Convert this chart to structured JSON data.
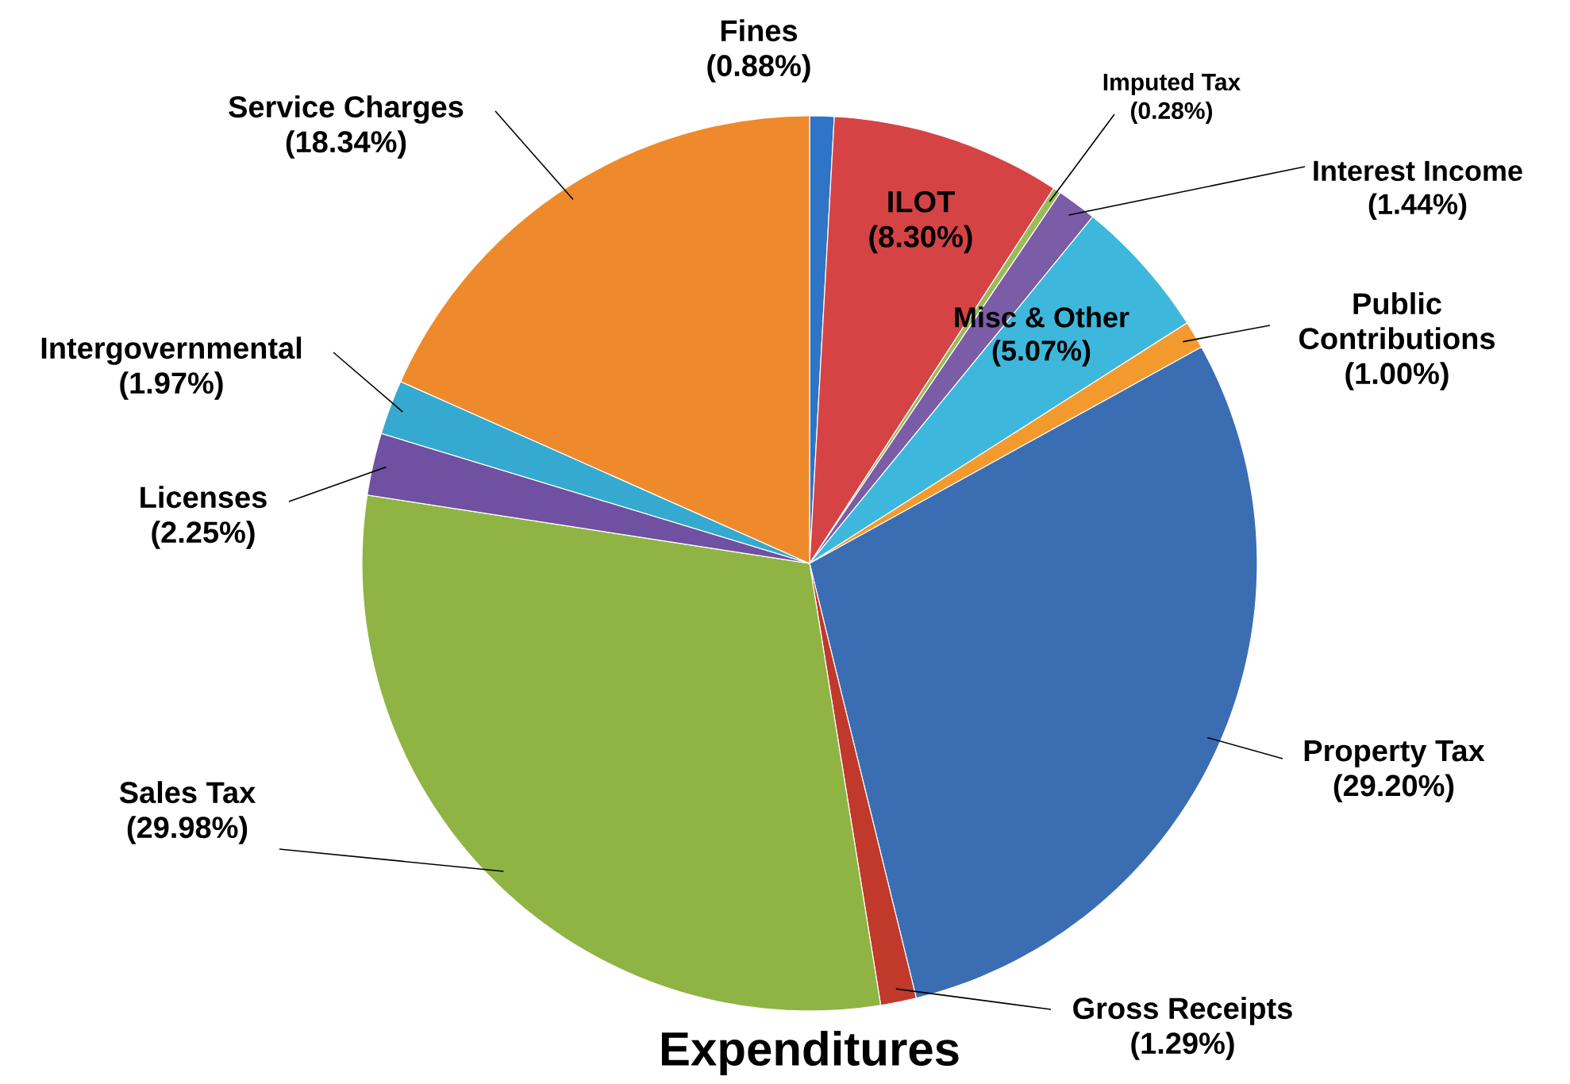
{
  "chart_data": {
    "type": "pie",
    "title": "Expenditures",
    "categories": [
      "Fines",
      "ILOT",
      "Imputed Tax",
      "Interest Income",
      "Misc & Other",
      "Public Contributions",
      "Property Tax",
      "Gross Receipts",
      "Sales Tax",
      "Licenses",
      "Intergovernmental",
      "Service Charges"
    ],
    "values": [
      0.88,
      8.3,
      0.28,
      1.44,
      5.07,
      1.0,
      29.2,
      1.29,
      29.98,
      2.25,
      1.97,
      18.34
    ],
    "value_labels": [
      "(0.88%)",
      "(8.30%)",
      "(0.28%)",
      "(1.44%)",
      "(5.07%)",
      "(1.00%)",
      "(29.20%)",
      "(1.29%)",
      "(29.98%)",
      "(2.25%)",
      "(1.97%)",
      "(18.34%)"
    ],
    "colors": [
      "#2f74c6",
      "#d64344",
      "#9bbb59",
      "#7b5ca6",
      "#3db8dc",
      "#f39a2e",
      "#3b6db3",
      "#c0392b",
      "#8fb444",
      "#7050a0",
      "#35a9cf",
      "#ee8a2c"
    ]
  }
}
